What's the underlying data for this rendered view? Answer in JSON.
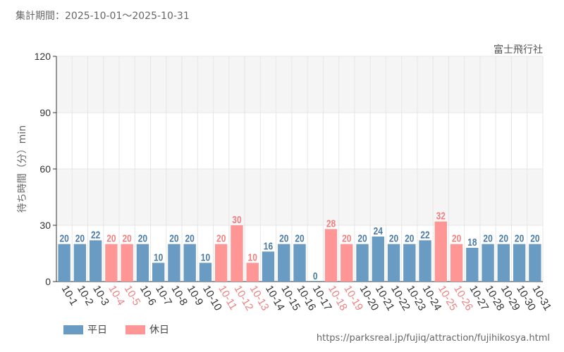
{
  "header": {
    "period": "集計期間：2025-10-01～2025-10-31"
  },
  "attraction": "富士飛行社",
  "source_url": "https://parksreal.jp/fujiq/attraction/fujihikosya.html",
  "legend": {
    "weekday": "平日",
    "holiday": "休日"
  },
  "colors": {
    "weekday": "#6a9bc3",
    "holiday": "#ff9696",
    "holiday_text": "#f08080",
    "weekday_text": "#4a7ba6",
    "band": "#f5f5f5",
    "grid": "#e6e6e6",
    "axis": "#333333"
  },
  "chart_data": {
    "type": "bar",
    "title": "",
    "xlabel": "",
    "ylabel": "待ち時間（分）min",
    "ylim": [
      0,
      120
    ],
    "yticks": [
      0,
      30,
      60,
      90,
      120
    ],
    "categories": [
      "10-1",
      "10-2",
      "10-3",
      "10-4",
      "10-5",
      "10-6",
      "10-7",
      "10-8",
      "10-9",
      "10-10",
      "10-11",
      "10-12",
      "10-13",
      "10-14",
      "10-15",
      "10-16",
      "10-17",
      "10-18",
      "10-19",
      "10-20",
      "10-21",
      "10-22",
      "10-23",
      "10-24",
      "10-25",
      "10-26",
      "10-27",
      "10-28",
      "10-29",
      "10-30",
      "10-31"
    ],
    "values": [
      20,
      20,
      22,
      20,
      20,
      20,
      10,
      20,
      20,
      10,
      20,
      30,
      10,
      16,
      20,
      20,
      0,
      28,
      20,
      20,
      24,
      20,
      20,
      22,
      32,
      20,
      18,
      20,
      20,
      20,
      20
    ],
    "day_type": [
      "weekday",
      "weekday",
      "weekday",
      "holiday",
      "holiday",
      "weekday",
      "weekday",
      "weekday",
      "weekday",
      "weekday",
      "holiday",
      "holiday",
      "holiday",
      "weekday",
      "weekday",
      "weekday",
      "weekday",
      "holiday",
      "holiday",
      "weekday",
      "weekday",
      "weekday",
      "weekday",
      "weekday",
      "holiday",
      "holiday",
      "weekday",
      "weekday",
      "weekday",
      "weekday",
      "weekday"
    ]
  }
}
